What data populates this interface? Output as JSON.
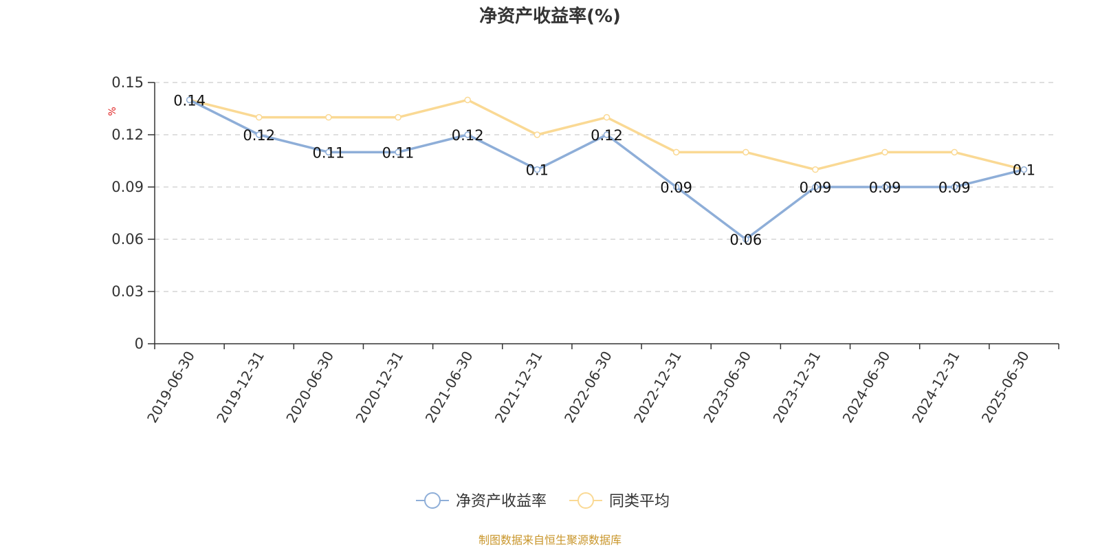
{
  "colors": {
    "series1": "#8eaed8",
    "series2": "#fad994",
    "source": "#c9962b",
    "unit": "#e02020"
  },
  "chart_data": {
    "type": "line",
    "title": "净资产收益率(%)",
    "ylabel": "%",
    "xlabel": "",
    "ylim": [
      0,
      0.15
    ],
    "yticks": [
      "0",
      "0.03",
      "0.06",
      "0.09",
      "0.12",
      "0.15"
    ],
    "grid": true,
    "legend_position": "bottom",
    "x": [
      "2019-06-30",
      "2019-12-31",
      "2020-06-30",
      "2020-12-31",
      "2021-06-30",
      "2021-12-31",
      "2022-06-30",
      "2022-12-31",
      "2023-06-30",
      "2023-12-31",
      "2024-06-30",
      "2024-12-31",
      "2025-06-30"
    ],
    "series": [
      {
        "name": "净资产收益率",
        "values": [
          0.14,
          0.12,
          0.11,
          0.11,
          0.12,
          0.1,
          0.12,
          0.09,
          0.06,
          0.09,
          0.09,
          0.09,
          0.1
        ],
        "labels": [
          "0.14",
          "0.12",
          "0.11",
          "0.11",
          "0.12",
          "0.1",
          "0.12",
          "0.09",
          "0.06",
          "0.09",
          "0.09",
          "0.09",
          "0.1"
        ]
      },
      {
        "name": "同类平均",
        "values": [
          0.14,
          0.13,
          0.13,
          0.13,
          0.14,
          0.12,
          0.13,
          0.11,
          0.11,
          0.1,
          0.11,
          0.11,
          0.1
        ]
      }
    ]
  },
  "footer": {
    "source": "制图数据来自恒生聚源数据库"
  }
}
